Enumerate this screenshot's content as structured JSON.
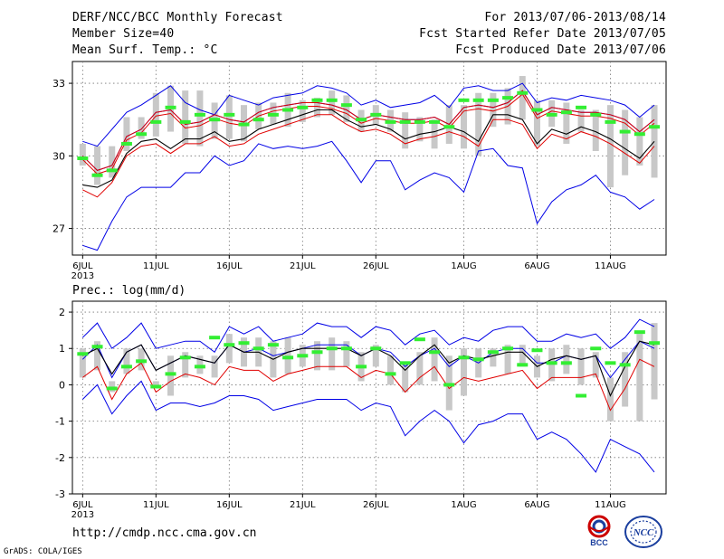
{
  "header": {
    "line1_left": "DERF/NCC/BCC Monthly Forecast",
    "line2_left": "Member Size=40",
    "line3_left": "Mean Surf. Temp.: °C",
    "line1_right": "For 2013/07/06-2013/08/14",
    "line2_right": "Fcst Started Refer Date 2013/07/05",
    "line3_right": "Fcst Produced Date 2013/07/06"
  },
  "footer": {
    "url": "http://cmdp.ncc.cma.gov.cn",
    "credit": "GrADS: COLA/IGES",
    "logo_bcc_text": "BCC",
    "logo_ncc_text": "NCC"
  },
  "colors": {
    "envelope": "#0000e6",
    "lower": "#e00000",
    "mean": "#000000",
    "box": "#c8c8c8",
    "marker": "#33ee33"
  },
  "chart_data": [
    {
      "type": "line",
      "title": "Mean Surf. Temp.: °C",
      "x_days": 40,
      "xtick_labels": [
        "6JUL",
        "11JUL",
        "16JUL",
        "21JUL",
        "26JUL",
        "1AUG",
        "6AUG",
        "11AUG"
      ],
      "xtick_days": [
        0,
        5,
        10,
        15,
        20,
        26,
        31,
        36
      ],
      "year_label": "2013",
      "ylim": [
        25.9,
        33.9
      ],
      "yticks": [
        27,
        30,
        33
      ],
      "series": [
        {
          "name": "max",
          "values": [
            30.6,
            30.4,
            31.1,
            31.8,
            32.1,
            32.5,
            32.9,
            32.2,
            31.9,
            31.7,
            32.5,
            32.3,
            32.1,
            32.4,
            32.5,
            32.6,
            32.9,
            32.8,
            32.6,
            32.1,
            32.3,
            32.0,
            32.1,
            32.2,
            32.5,
            32.0,
            32.8,
            32.9,
            32.7,
            32.7,
            33.0,
            32.2,
            32.4,
            32.3,
            32.5,
            32.4,
            32.3,
            32.1,
            31.6,
            32.1
          ]
        },
        {
          "name": "upper",
          "values": [
            30.0,
            29.4,
            29.6,
            30.8,
            31.1,
            31.8,
            31.9,
            31.3,
            31.4,
            31.7,
            31.5,
            31.4,
            31.8,
            32.0,
            32.1,
            32.2,
            32.2,
            32.1,
            31.9,
            31.5,
            31.7,
            31.6,
            31.5,
            31.5,
            31.6,
            31.3,
            32.0,
            32.1,
            32.0,
            32.2,
            32.7,
            31.7,
            32.0,
            31.9,
            31.8,
            31.8,
            31.7,
            31.5,
            31.0,
            31.5
          ]
        },
        {
          "name": "mean",
          "values": [
            28.8,
            28.7,
            29.0,
            30.1,
            30.6,
            30.7,
            30.3,
            30.7,
            30.7,
            31.0,
            30.6,
            30.7,
            31.1,
            31.3,
            31.5,
            31.7,
            31.9,
            31.9,
            31.5,
            31.2,
            31.3,
            31.1,
            30.7,
            30.9,
            31.0,
            31.2,
            31.0,
            30.6,
            31.7,
            31.7,
            31.5,
            30.5,
            31.1,
            30.9,
            31.2,
            31.0,
            30.7,
            30.3,
            29.9,
            30.6
          ]
        },
        {
          "name": "lower",
          "values": [
            28.6,
            28.3,
            28.9,
            30.0,
            30.4,
            30.5,
            30.1,
            30.5,
            30.5,
            30.8,
            30.4,
            30.5,
            30.9,
            31.1,
            31.3,
            31.5,
            31.7,
            31.7,
            31.3,
            31.0,
            31.1,
            30.9,
            30.5,
            30.7,
            30.8,
            31.0,
            30.8,
            30.4,
            31.5,
            31.5,
            31.3,
            30.3,
            30.9,
            30.7,
            31.0,
            30.8,
            30.5,
            30.1,
            29.7,
            30.4
          ]
        },
        {
          "name": "min",
          "values": [
            26.3,
            26.1,
            27.3,
            28.3,
            28.7,
            28.7,
            28.7,
            29.3,
            29.3,
            30.0,
            29.6,
            29.8,
            30.5,
            30.3,
            30.4,
            30.3,
            30.4,
            30.6,
            29.8,
            28.9,
            29.8,
            29.8,
            28.6,
            29.0,
            29.3,
            29.1,
            28.5,
            30.2,
            30.3,
            29.6,
            29.5,
            27.2,
            28.1,
            28.6,
            28.8,
            29.2,
            28.5,
            28.3,
            27.8,
            28.2
          ]
        },
        {
          "name": "box_low",
          "values": [
            29.6,
            28.8,
            29.1,
            30.2,
            30.7,
            30.8,
            31.0,
            30.5,
            30.4,
            30.7,
            30.7,
            30.6,
            31.1,
            31.3,
            31.2,
            31.4,
            31.6,
            31.7,
            31.4,
            31.0,
            31.3,
            31.0,
            30.3,
            30.6,
            30.3,
            30.5,
            30.3,
            30.0,
            31.2,
            31.3,
            31.5,
            30.4,
            31.2,
            30.5,
            31.0,
            30.2,
            28.7,
            29.2,
            29.6,
            29.1
          ]
        },
        {
          "name": "box_high",
          "values": [
            30.5,
            30.4,
            30.4,
            31.6,
            31.6,
            32.6,
            32.9,
            32.7,
            32.7,
            32.2,
            32.5,
            32.1,
            32.2,
            32.2,
            32.6,
            32.3,
            32.4,
            32.7,
            32.5,
            31.9,
            32.1,
            31.9,
            31.8,
            31.6,
            31.5,
            32.1,
            32.1,
            32.6,
            32.6,
            32.8,
            33.3,
            32.3,
            32.3,
            32.2,
            31.9,
            31.9,
            32.1,
            31.9,
            31.6,
            32.1
          ]
        },
        {
          "name": "marker",
          "values": [
            29.9,
            29.2,
            29.4,
            30.5,
            30.9,
            31.4,
            32.0,
            31.4,
            31.7,
            31.5,
            31.7,
            31.3,
            31.5,
            31.7,
            31.9,
            32.0,
            32.3,
            32.3,
            32.1,
            31.5,
            31.7,
            31.4,
            31.4,
            31.4,
            31.4,
            31.2,
            32.3,
            32.3,
            32.3,
            32.4,
            32.6,
            31.9,
            31.7,
            31.8,
            32.0,
            31.7,
            31.4,
            31.0,
            30.9,
            31.2
          ]
        }
      ]
    },
    {
      "type": "line",
      "title": "Prec.: log(mm/d)",
      "x_days": 40,
      "xtick_labels": [
        "6JUL",
        "11JUL",
        "16JUL",
        "21JUL",
        "26JUL",
        "1AUG",
        "6AUG",
        "11AUG"
      ],
      "xtick_days": [
        0,
        5,
        10,
        15,
        20,
        26,
        31,
        36
      ],
      "year_label": "2013",
      "ylim": [
        -3,
        2.3
      ],
      "yticks": [
        -3,
        -2,
        -1,
        0,
        1,
        2
      ],
      "series": [
        {
          "name": "max",
          "values": [
            1.3,
            1.7,
            1.0,
            1.3,
            1.7,
            1.0,
            1.1,
            1.2,
            1.2,
            0.9,
            1.6,
            1.4,
            1.6,
            1.2,
            1.3,
            1.4,
            1.7,
            1.6,
            1.6,
            1.3,
            1.6,
            1.5,
            1.1,
            1.4,
            1.5,
            1.1,
            1.3,
            1.2,
            1.5,
            1.6,
            1.6,
            1.2,
            1.2,
            1.4,
            1.3,
            1.4,
            1.0,
            1.3,
            1.8,
            1.6
          ]
        },
        {
          "name": "upper",
          "values": [
            0.7,
            1.1,
            0.2,
            0.9,
            1.1,
            0.4,
            0.6,
            0.8,
            0.7,
            0.6,
            1.1,
            0.9,
            1.0,
            0.8,
            0.9,
            1.0,
            1.1,
            1.1,
            1.1,
            0.8,
            1.0,
            0.9,
            0.5,
            0.8,
            1.0,
            0.5,
            0.8,
            0.6,
            0.9,
            1.0,
            1.0,
            0.6,
            0.6,
            0.8,
            0.7,
            0.8,
            0.2,
            0.7,
            1.2,
            1.0
          ]
        },
        {
          "name": "mean",
          "values": [
            0.8,
            1.0,
            0.3,
            0.9,
            1.1,
            0.4,
            0.6,
            0.8,
            0.7,
            0.6,
            1.1,
            0.9,
            0.9,
            0.7,
            0.9,
            1.0,
            1.0,
            1.0,
            1.0,
            0.8,
            1.0,
            0.8,
            0.4,
            0.8,
            1.1,
            0.6,
            0.8,
            0.7,
            0.8,
            0.9,
            0.9,
            0.5,
            0.7,
            0.8,
            0.7,
            0.8,
            -0.3,
            0.5,
            1.2,
            1.1
          ]
        },
        {
          "name": "lower",
          "values": [
            0.2,
            0.5,
            -0.4,
            0.3,
            0.6,
            -0.2,
            0.1,
            0.3,
            0.2,
            0.0,
            0.5,
            0.4,
            0.4,
            0.1,
            0.3,
            0.4,
            0.5,
            0.5,
            0.5,
            0.2,
            0.4,
            0.3,
            -0.2,
            0.2,
            0.5,
            -0.1,
            0.2,
            0.1,
            0.2,
            0.3,
            0.4,
            -0.1,
            0.2,
            0.2,
            0.2,
            0.3,
            -0.7,
            -0.1,
            0.7,
            0.5
          ]
        },
        {
          "name": "min",
          "values": [
            -0.4,
            0.0,
            -0.8,
            -0.3,
            0.1,
            -0.7,
            -0.5,
            -0.5,
            -0.6,
            -0.5,
            -0.3,
            -0.3,
            -0.4,
            -0.7,
            -0.6,
            -0.5,
            -0.4,
            -0.4,
            -0.4,
            -0.7,
            -0.5,
            -0.6,
            -1.4,
            -1.0,
            -0.7,
            -1.0,
            -1.6,
            -1.1,
            -1.0,
            -0.8,
            -0.8,
            -1.5,
            -1.3,
            -1.5,
            -1.9,
            -2.4,
            -1.5,
            -1.7,
            -1.9,
            -2.4
          ]
        },
        {
          "name": "box_low",
          "values": [
            0.2,
            0.4,
            -0.2,
            0.3,
            0.4,
            -0.1,
            -0.3,
            0.2,
            0.3,
            0.2,
            0.6,
            0.5,
            0.5,
            0.2,
            0.3,
            0.5,
            0.4,
            0.4,
            0.5,
            0.1,
            0.5,
            0.0,
            -0.2,
            0.0,
            0.1,
            -0.7,
            -0.3,
            0.2,
            0.5,
            0.3,
            0.5,
            0.2,
            0.1,
            0.3,
            0.0,
            0.2,
            -1.0,
            -0.6,
            -1.0,
            -0.4
          ]
        },
        {
          "name": "box_high",
          "values": [
            1.0,
            1.2,
            0.1,
            1.0,
            1.0,
            0.1,
            0.8,
            0.9,
            0.8,
            0.8,
            1.4,
            1.3,
            1.3,
            1.2,
            1.3,
            1.1,
            1.2,
            1.3,
            1.2,
            0.9,
            1.1,
            0.8,
            0.6,
            0.9,
            1.3,
            0.8,
            1.0,
            1.0,
            1.0,
            1.1,
            1.1,
            0.8,
            1.0,
            1.1,
            1.0,
            0.9,
            0.2,
            0.9,
            1.4,
            1.7
          ]
        },
        {
          "name": "marker",
          "values": [
            0.85,
            1.05,
            -0.1,
            0.5,
            0.65,
            -0.05,
            0.3,
            0.75,
            0.5,
            1.3,
            1.1,
            1.15,
            1.0,
            1.1,
            0.75,
            0.8,
            0.9,
            1.0,
            1.0,
            0.5,
            1.0,
            0.3,
            0.6,
            1.25,
            0.9,
            0.0,
            0.75,
            0.7,
            0.9,
            1.0,
            0.55,
            0.95,
            0.6,
            0.6,
            -0.3,
            1.0,
            0.6,
            0.55,
            1.45,
            1.15
          ]
        }
      ]
    }
  ]
}
